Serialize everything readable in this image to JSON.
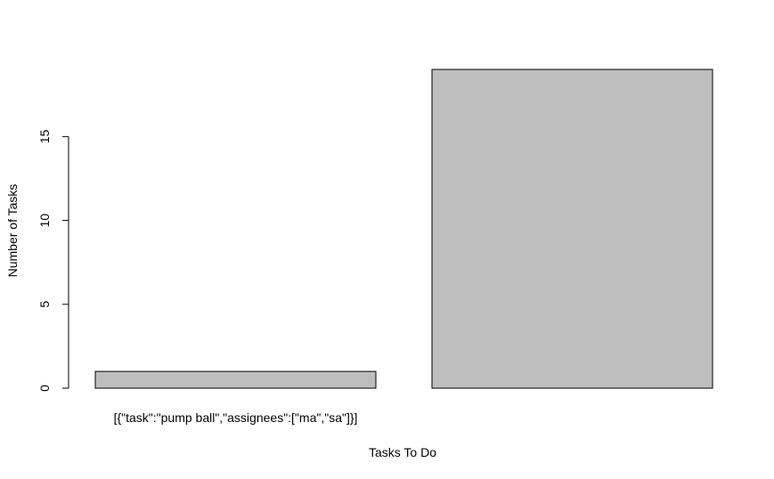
{
  "chart_data": {
    "type": "bar",
    "title": "",
    "xlabel": "Tasks To Do",
    "ylabel": "Number of Tasks",
    "categories": [
      "[{\"task\":\"pump ball\",\"assignees\":[\"ma\",\"sa\"]}]",
      ""
    ],
    "values": [
      1,
      19
    ],
    "yticks": [
      0,
      5,
      10,
      15
    ],
    "ylim": [
      0,
      19
    ],
    "bar_color": "#bebebe",
    "grid": false,
    "legend": "none"
  }
}
